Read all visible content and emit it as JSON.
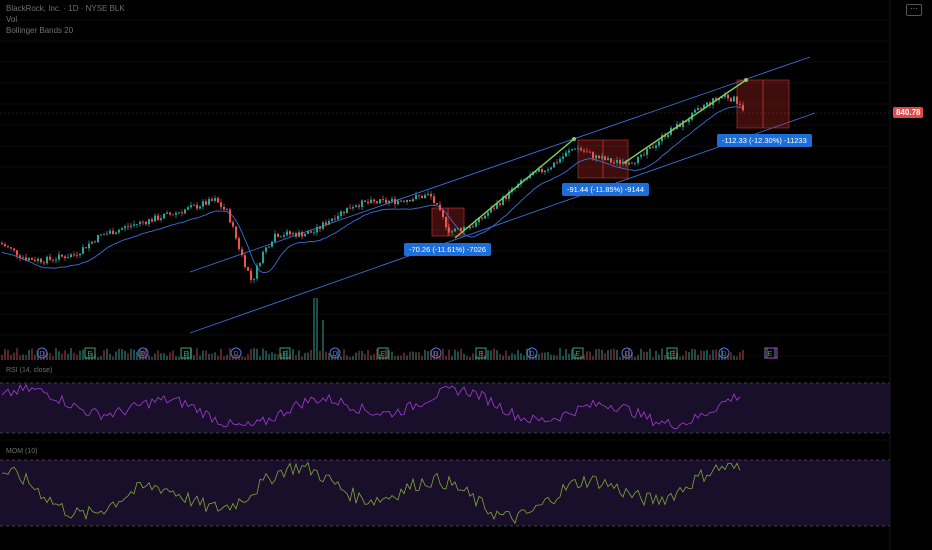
{
  "header": {
    "symbol_line": "BlackRock, Inc. · 1D · NYSE BLK",
    "line2": "Vol",
    "line3": "Bollinger Bands 20"
  },
  "last_price": "840.78",
  "measurements": [
    {
      "text": "-70.26 (-11.61%) -7026"
    },
    {
      "text": "-91.44 (-11.85%) -9144"
    },
    {
      "text": "-112.33 (-12.30%) -11233"
    }
  ],
  "indicators": {
    "rsi_label": "RSI (14, close)",
    "mom_label": "MOM (10)"
  },
  "event_markers": [
    "D",
    "E",
    "D",
    "E",
    "D",
    "E",
    "D",
    "E",
    "D",
    "E",
    "D",
    "E",
    "D",
    "E",
    "D",
    "E",
    "E"
  ],
  "colors": {
    "up": "#26a69a",
    "down": "#ef5350",
    "channel": "#3b6fd8",
    "trend_arrow": "#7fd35a",
    "rsi": "#a23dd6",
    "mom": "#7fa73a",
    "indicator_bg": "#1a0f2a",
    "price_tag": "#e04a4a",
    "measure_box": "#1d6ed8"
  },
  "chart_data": {
    "type": "candlestick",
    "series": [
      {
        "name": "BLK",
        "anchors": [
          [
            0,
            600
          ],
          [
            25,
            580
          ],
          [
            45,
            577
          ],
          [
            75,
            585
          ],
          [
            100,
            610
          ],
          [
            135,
            625
          ],
          [
            175,
            640
          ],
          [
            215,
            657
          ],
          [
            228,
            640
          ],
          [
            240,
            590
          ],
          [
            252,
            548
          ],
          [
            262,
            585
          ],
          [
            275,
            612
          ],
          [
            300,
            612
          ],
          [
            315,
            615
          ],
          [
            330,
            632
          ],
          [
            355,
            652
          ],
          [
            395,
            656
          ],
          [
            430,
            664
          ],
          [
            450,
            615
          ],
          [
            475,
            625
          ],
          [
            500,
            655
          ],
          [
            525,
            685
          ],
          [
            550,
            702
          ],
          [
            575,
            728
          ],
          [
            595,
            715
          ],
          [
            615,
            707
          ],
          [
            640,
            712
          ],
          [
            665,
            745
          ],
          [
            685,
            762
          ],
          [
            705,
            784
          ],
          [
            725,
            797
          ],
          [
            740,
            787
          ],
          [
            745,
            775
          ]
        ]
      }
    ],
    "rsi_series": {
      "name": "RSI (14, close)",
      "upper": 70,
      "lower": 30
    },
    "mom_series": {
      "name": "MOM (10)"
    }
  }
}
